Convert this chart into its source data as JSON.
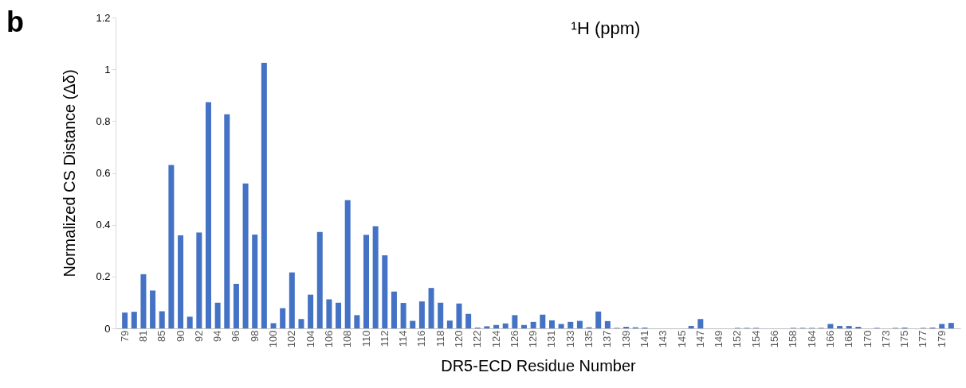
{
  "chart_data": {
    "type": "bar",
    "title": "b",
    "annotations": [
      "¹H (ppm)"
    ],
    "xlabel": "DR5-ECD Residue Number",
    "ylabel": "Normalized CS Distance (Δδ)",
    "categories": [
      "79",
      null,
      "81",
      null,
      "85",
      null,
      "90",
      null,
      "92",
      null,
      "94",
      null,
      "96",
      null,
      "98",
      null,
      "100",
      null,
      "102",
      null,
      "104",
      null,
      "106",
      null,
      "108",
      null,
      "110",
      null,
      "112",
      null,
      "114",
      null,
      "116",
      null,
      "118",
      null,
      "120",
      null,
      "122",
      null,
      "124",
      null,
      "126",
      null,
      "129",
      null,
      "131",
      null,
      "133",
      null,
      "135",
      null,
      "137",
      null,
      "139",
      null,
      "141",
      null,
      "143",
      null,
      "145",
      null,
      "147",
      null,
      "149",
      null,
      "152",
      null,
      "154",
      null,
      "156",
      null,
      "158",
      null,
      "164",
      null,
      "166",
      null,
      "168",
      null,
      "170",
      null,
      "173",
      null,
      "175",
      null,
      "177",
      null,
      "179",
      null
    ],
    "values": [
      0.061,
      0.064,
      0.209,
      0.146,
      0.066,
      0.631,
      0.359,
      0.045,
      0.37,
      0.873,
      0.099,
      0.826,
      0.172,
      0.559,
      0.362,
      1.025,
      0.02,
      0.078,
      0.216,
      0.036,
      0.13,
      0.372,
      0.112,
      0.099,
      0.495,
      0.051,
      0.361,
      0.394,
      0.282,
      0.142,
      0.098,
      0.029,
      0.104,
      0.156,
      0.099,
      0.03,
      0.096,
      0.056,
      0.003,
      0.008,
      0.013,
      0.019,
      0.051,
      0.013,
      0.025,
      0.053,
      0.031,
      0.017,
      0.025,
      0.029,
      0.004,
      0.065,
      0.028,
      0.002,
      0.006,
      0.004,
      0.003,
      0,
      0,
      0,
      0,
      0.009,
      0.036,
      0,
      0,
      0,
      0.002,
      0.002,
      0.002,
      0,
      0,
      0,
      0.002,
      0.002,
      0.002,
      0.002,
      0.017,
      0.009,
      0.009,
      0.006,
      0,
      0.002,
      0,
      0.002,
      0.003,
      0,
      0.002,
      0.003,
      0.017,
      0.021
    ],
    "color": "#4472c4",
    "ylim": [
      0,
      1.2
    ],
    "yticks": [
      0,
      0.2,
      0.4,
      0.6,
      0.8,
      1,
      1.2
    ],
    "grid": false
  }
}
